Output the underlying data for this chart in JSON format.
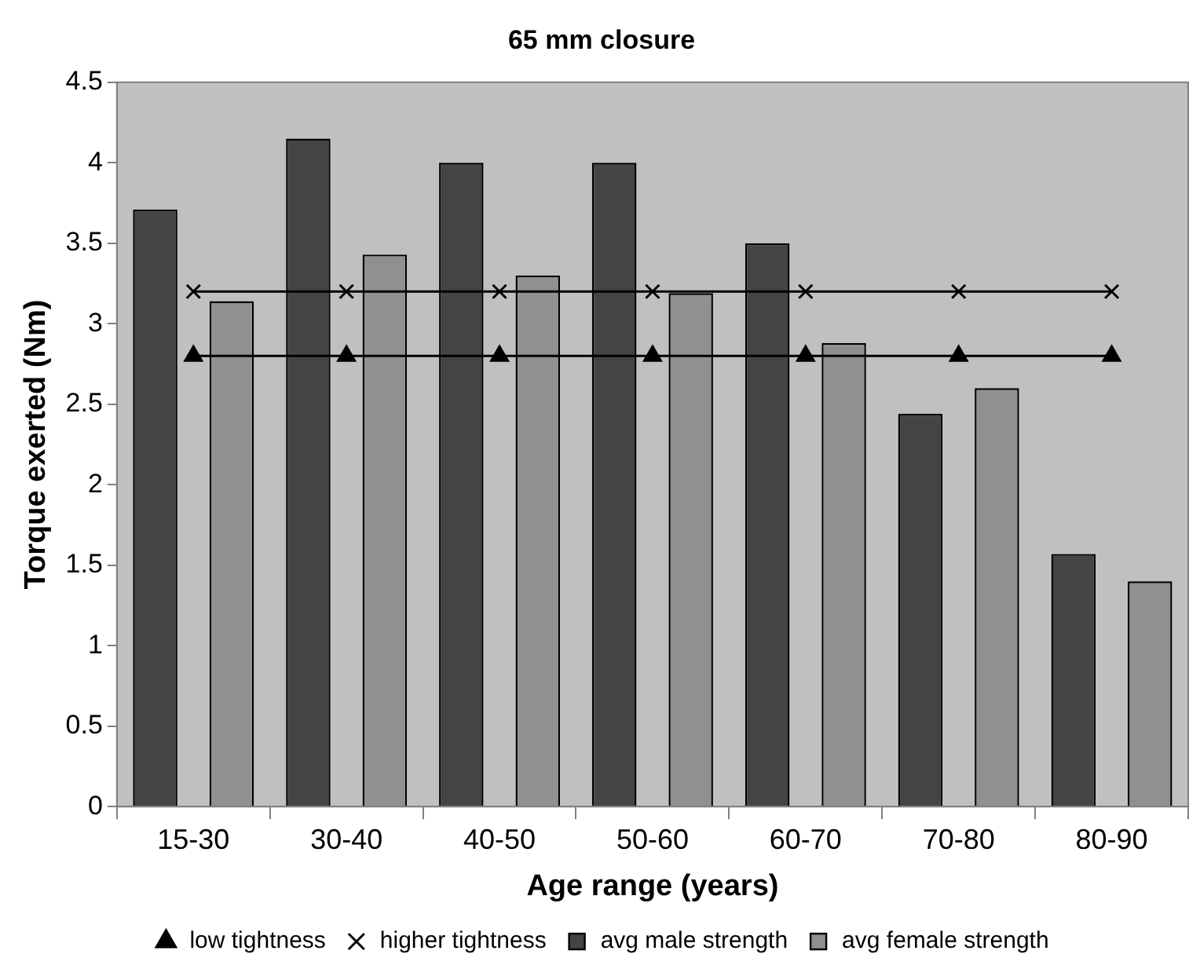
{
  "chart_data": {
    "type": "bar",
    "title": "65 mm closure",
    "xlabel": "Age range (years)",
    "ylabel": "Torque exerted (Nm)",
    "categories": [
      "15-30",
      "30-40",
      "40-50",
      "50-60",
      "60-70",
      "70-80",
      "80-90"
    ],
    "series": [
      {
        "name": "avg male strength",
        "color": "#444444",
        "values": [
          3.71,
          4.15,
          4.0,
          4.0,
          3.5,
          2.44,
          1.57
        ]
      },
      {
        "name": "avg female strength",
        "color": "#909090",
        "values": [
          3.14,
          3.43,
          3.3,
          3.19,
          2.88,
          2.6,
          1.4
        ]
      },
      {
        "name": "low tightness",
        "type": "line",
        "color": "#000000",
        "marker": "triangle",
        "values": [
          2.8,
          2.8,
          2.8,
          2.8,
          2.8,
          2.8,
          2.8
        ]
      },
      {
        "name": "higher tightness",
        "type": "line",
        "color": "#000000",
        "marker": "cross",
        "values": [
          3.2,
          3.2,
          3.2,
          3.2,
          3.2,
          3.2,
          3.2
        ]
      }
    ],
    "ylim": [
      0,
      4.5
    ],
    "yticks": [
      0,
      0.5,
      1,
      1.5,
      2,
      2.5,
      3,
      3.5,
      4,
      4.5
    ],
    "grid": false,
    "legend": "bottom"
  }
}
